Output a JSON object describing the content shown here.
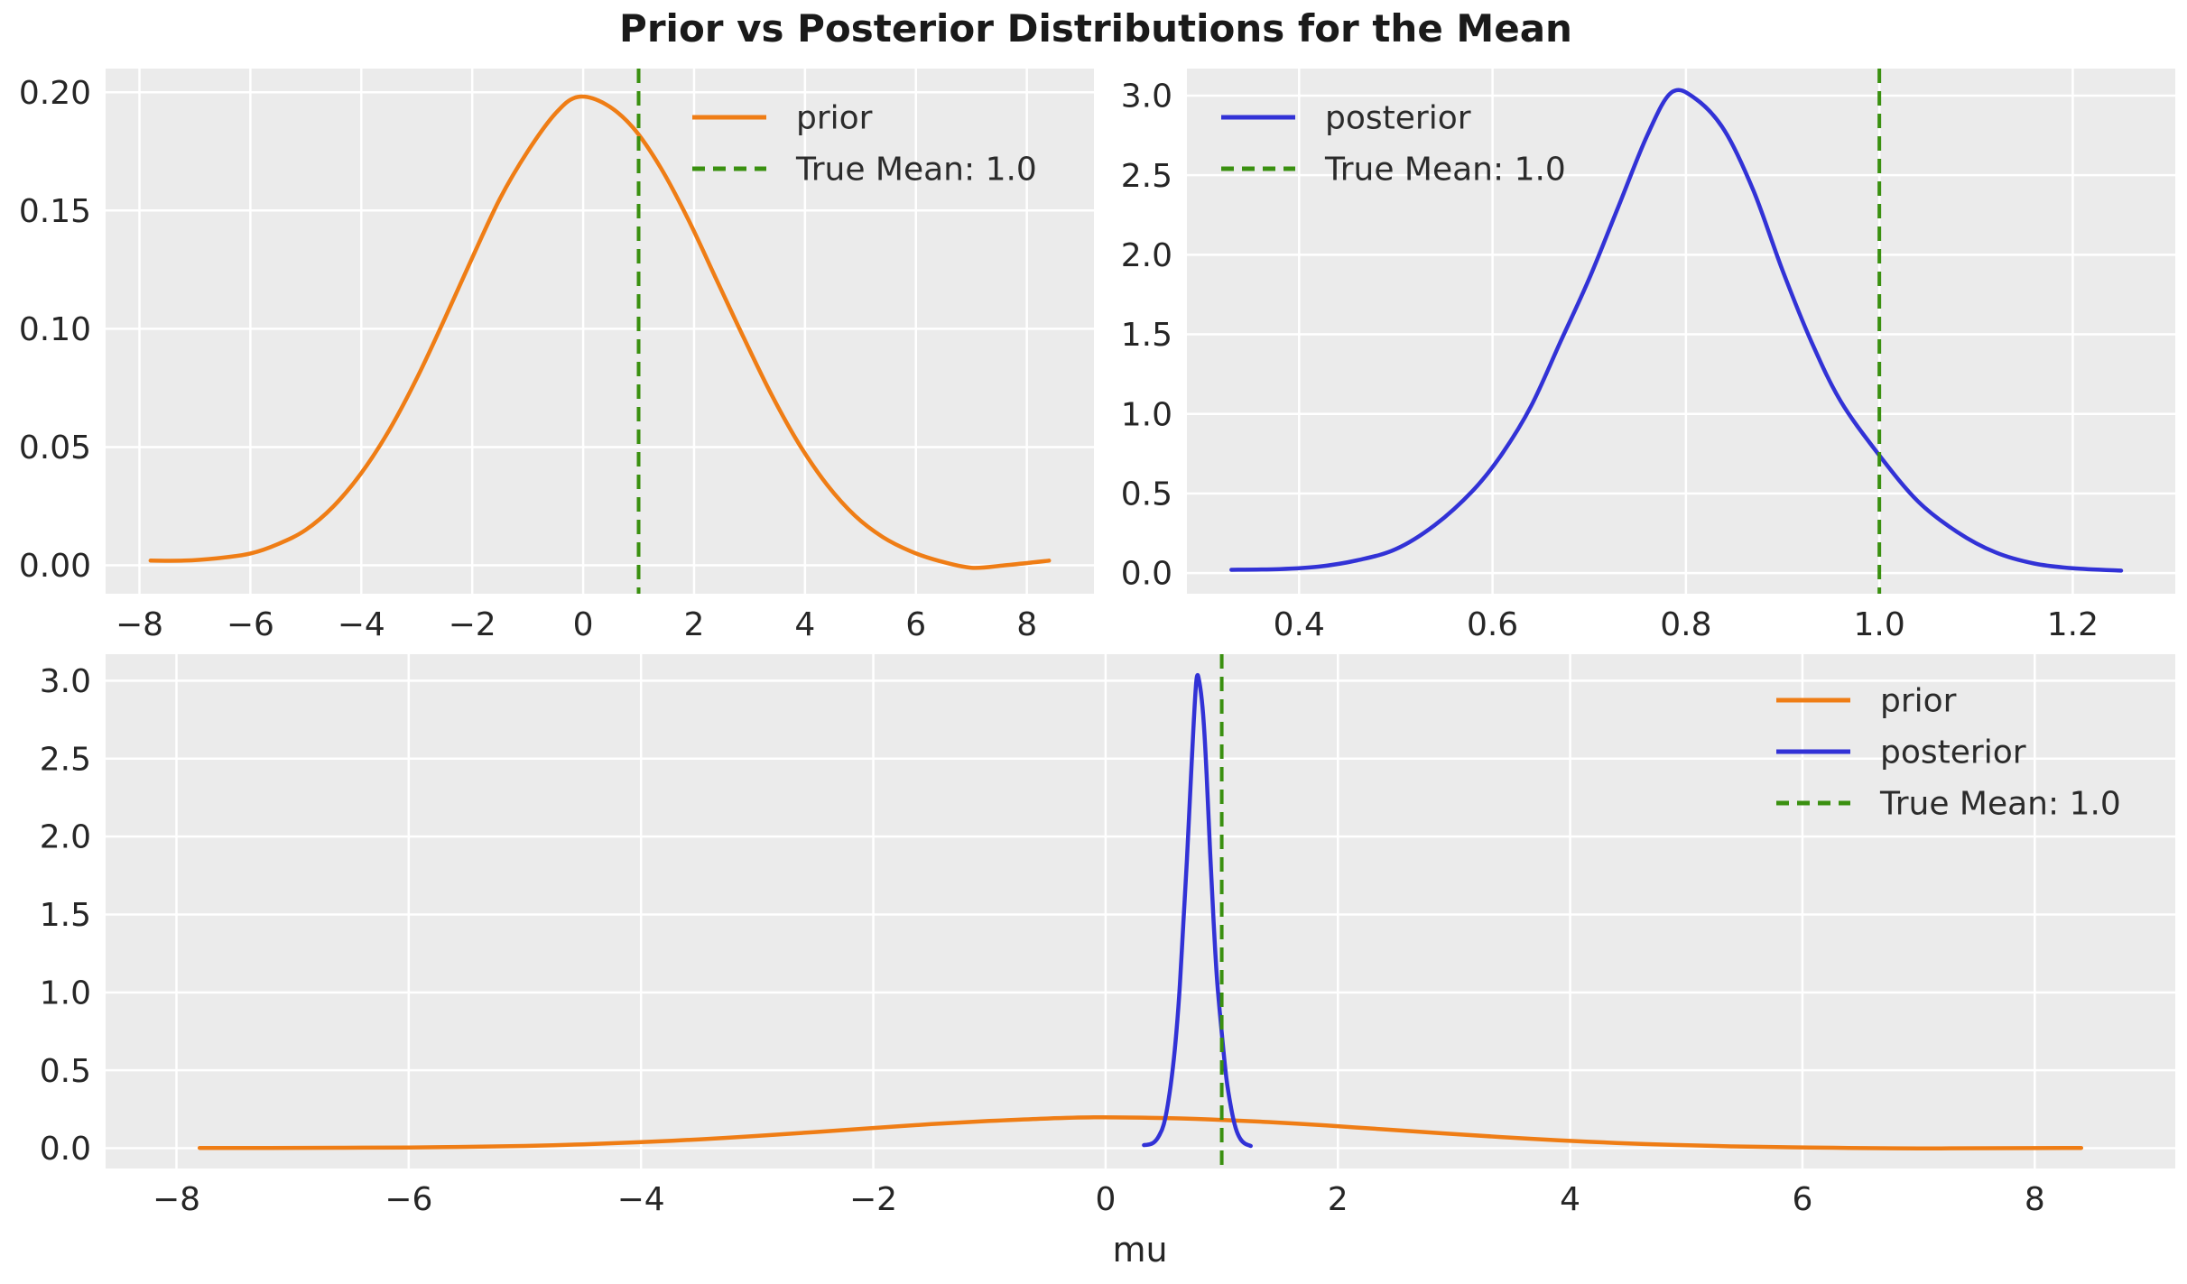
{
  "figure": {
    "title": "Prior vs Posterior Distributions for the Mean",
    "xlabel": "mu"
  },
  "colors": {
    "prior": "#ef7d15",
    "posterior": "#3232d6",
    "true_mean": "#3a9010",
    "axes_bg": "#ebebeb",
    "grid": "#ffffff",
    "text": "#262626"
  },
  "legend_labels": {
    "prior": "prior",
    "posterior": "posterior",
    "true_mean": "True Mean: 1.0"
  },
  "chart_data": {
    "type": "line",
    "figure_title": "Prior vs Posterior Distributions for the Mean",
    "true_mean": 1.0,
    "grid": true,
    "curves": {
      "prior": {
        "name": "prior",
        "points": [
          [
            -7.8,
            0.002
          ],
          [
            -7.2,
            0.002
          ],
          [
            -6.6,
            0.003
          ],
          [
            -6.0,
            0.005
          ],
          [
            -5.5,
            0.009
          ],
          [
            -5.0,
            0.015
          ],
          [
            -4.5,
            0.025
          ],
          [
            -4.0,
            0.039
          ],
          [
            -3.5,
            0.057
          ],
          [
            -3.0,
            0.079
          ],
          [
            -2.5,
            0.104
          ],
          [
            -2.0,
            0.13
          ],
          [
            -1.5,
            0.155
          ],
          [
            -1.0,
            0.175
          ],
          [
            -0.5,
            0.191
          ],
          [
            -0.1,
            0.198
          ],
          [
            0.4,
            0.195
          ],
          [
            0.9,
            0.185
          ],
          [
            1.4,
            0.168
          ],
          [
            1.9,
            0.146
          ],
          [
            2.4,
            0.121
          ],
          [
            2.9,
            0.096
          ],
          [
            3.4,
            0.072
          ],
          [
            3.9,
            0.051
          ],
          [
            4.4,
            0.034
          ],
          [
            4.9,
            0.021
          ],
          [
            5.4,
            0.012
          ],
          [
            5.9,
            0.006
          ],
          [
            6.4,
            0.002
          ],
          [
            7.0,
            -0.001
          ],
          [
            7.6,
            0.0
          ],
          [
            8.4,
            0.002
          ]
        ]
      },
      "posterior": {
        "name": "posterior",
        "points": [
          [
            0.33,
            0.02
          ],
          [
            0.38,
            0.025
          ],
          [
            0.42,
            0.04
          ],
          [
            0.46,
            0.08
          ],
          [
            0.5,
            0.15
          ],
          [
            0.54,
            0.3
          ],
          [
            0.58,
            0.52
          ],
          [
            0.61,
            0.75
          ],
          [
            0.64,
            1.05
          ],
          [
            0.67,
            1.45
          ],
          [
            0.7,
            1.85
          ],
          [
            0.73,
            2.3
          ],
          [
            0.76,
            2.75
          ],
          [
            0.785,
            3.02
          ],
          [
            0.81,
            2.98
          ],
          [
            0.84,
            2.78
          ],
          [
            0.87,
            2.4
          ],
          [
            0.9,
            1.9
          ],
          [
            0.93,
            1.45
          ],
          [
            0.96,
            1.08
          ],
          [
            1.0,
            0.74
          ],
          [
            1.04,
            0.45
          ],
          [
            1.08,
            0.26
          ],
          [
            1.12,
            0.13
          ],
          [
            1.16,
            0.06
          ],
          [
            1.2,
            0.03
          ],
          [
            1.25,
            0.015
          ]
        ]
      }
    },
    "subplots": [
      {
        "id": "prior",
        "series": [
          "prior"
        ],
        "vline": 1.0,
        "xlim": [
          -8.61,
          9.21
        ],
        "ylim": [
          -0.012,
          0.21
        ],
        "xticks": {
          "values": [
            -8,
            -6,
            -4,
            -2,
            0,
            2,
            4,
            6,
            8
          ],
          "labels": [
            "−8",
            "−6",
            "−4",
            "−2",
            "0",
            "2",
            "4",
            "6",
            "8"
          ]
        },
        "yticks": {
          "values": [
            0.0,
            0.05,
            0.1,
            0.15,
            0.2
          ],
          "labels": [
            "0.00",
            "0.05",
            "0.10",
            "0.15",
            "0.20"
          ]
        },
        "legend": [
          "prior",
          "true_mean"
        ],
        "legend_loc": "upper right"
      },
      {
        "id": "posterior",
        "series": [
          "posterior"
        ],
        "vline": 1.0,
        "xlim": [
          0.284,
          1.306
        ],
        "ylim": [
          -0.13,
          3.17
        ],
        "xticks": {
          "values": [
            0.4,
            0.6,
            0.8,
            1.0,
            1.2
          ],
          "labels": [
            "0.4",
            "0.6",
            "0.8",
            "1.0",
            "1.2"
          ]
        },
        "yticks": {
          "values": [
            0.0,
            0.5,
            1.0,
            1.5,
            2.0,
            2.5,
            3.0
          ],
          "labels": [
            "0.0",
            "0.5",
            "1.0",
            "1.5",
            "2.0",
            "2.5",
            "3.0"
          ]
        },
        "legend": [
          "posterior",
          "true_mean"
        ],
        "legend_loc": "upper left"
      },
      {
        "id": "combined",
        "series": [
          "prior",
          "posterior"
        ],
        "vline": 1.0,
        "xlim": [
          -8.61,
          9.21
        ],
        "ylim": [
          -0.13,
          3.17
        ],
        "xlabel": "mu",
        "xticks": {
          "values": [
            -8,
            -6,
            -4,
            -2,
            0,
            2,
            4,
            6,
            8
          ],
          "labels": [
            "−8",
            "−6",
            "−4",
            "−2",
            "0",
            "2",
            "4",
            "6",
            "8"
          ]
        },
        "yticks": {
          "values": [
            0.0,
            0.5,
            1.0,
            1.5,
            2.0,
            2.5,
            3.0
          ],
          "labels": [
            "0.0",
            "0.5",
            "1.0",
            "1.5",
            "2.0",
            "2.5",
            "3.0"
          ]
        },
        "legend": [
          "prior",
          "posterior",
          "true_mean"
        ],
        "legend_loc": "upper right"
      }
    ]
  }
}
